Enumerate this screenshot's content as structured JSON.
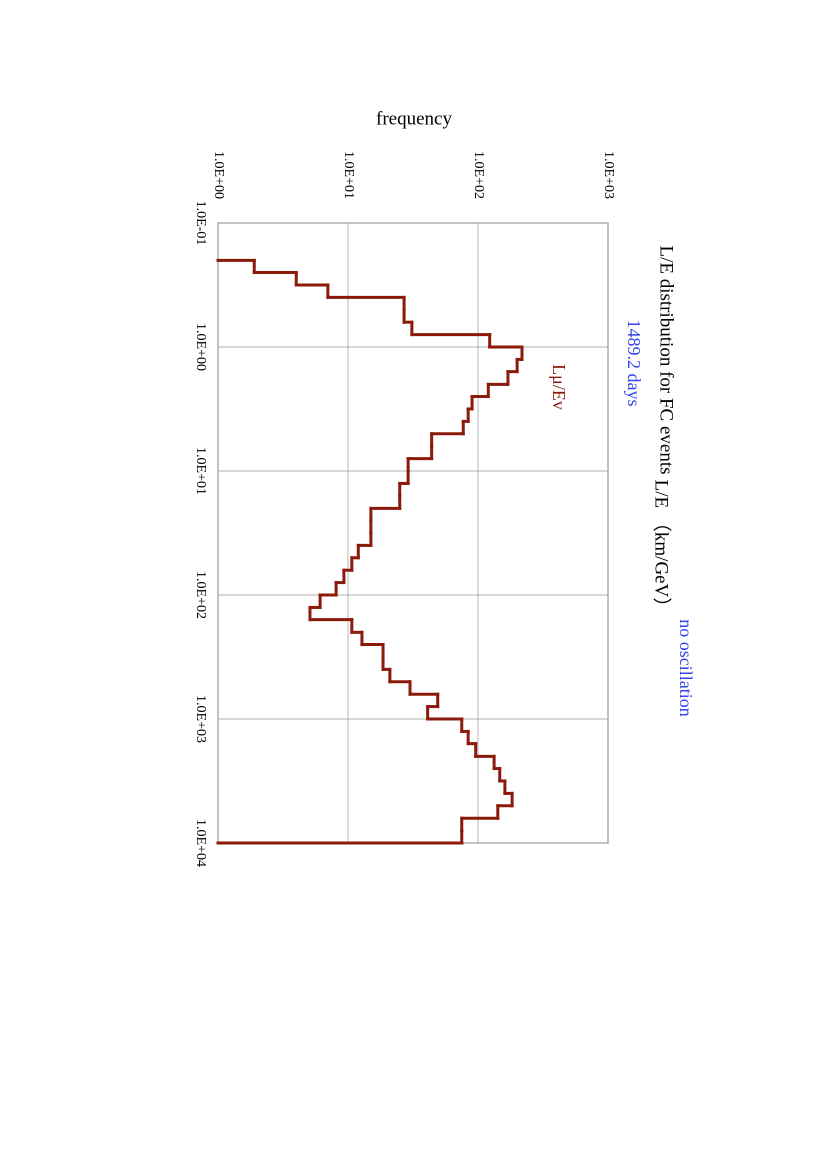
{
  "chart_data": {
    "type": "histogram",
    "title": "L/E distribution for FC events",
    "subtitle": "1489.2 days",
    "annotations": [
      "no oscillation"
    ],
    "xlabel": "L/E （km/GeV）",
    "ylabel": "frequency",
    "xlog": true,
    "ylog": true,
    "grid": true,
    "series": [
      {
        "name": "Lμ/Ev",
        "color": "#8b1a0a"
      }
    ],
    "bins": [
      0.2,
      0.251,
      0.316,
      0.398,
      0.501,
      0.631,
      0.794,
      1,
      1.26,
      1.58,
      2,
      2.51,
      3.16,
      3.98,
      5.01,
      6.31,
      7.94,
      10,
      12.6,
      15.8,
      20,
      25.1,
      31.6,
      39.8,
      50.1,
      63.1,
      79.4,
      100,
      126,
      158,
      200,
      251,
      316,
      398,
      501,
      631,
      794,
      1000,
      1260,
      1580,
      2000,
      2510,
      3160,
      3980,
      5010,
      6310,
      7940,
      10000
    ],
    "values": [
      1.9,
      4,
      7,
      27,
      27,
      31,
      123,
      218,
      200,
      170,
      120,
      90,
      84,
      77,
      44,
      44,
      29,
      29,
      25,
      25,
      15,
      15,
      15,
      12,
      10.7,
      9.3,
      8.1,
      6.1,
      5.1,
      10.7,
      12.8,
      18.6,
      18.6,
      21,
      30,
      49,
      41,
      75,
      84,
      96,
      133,
      147,
      161,
      183,
      142,
      75,
      75
    ],
    "xlim": [
      0.1,
      10000
    ],
    "xticks": [
      {
        "value": 0.1,
        "label": "1.0E-01"
      },
      {
        "value": 1,
        "label": "1.0E+00"
      },
      {
        "value": 10,
        "label": "1.0E+01"
      },
      {
        "value": 100,
        "label": "1.0E+02"
      },
      {
        "value": 1000,
        "label": "1.0E+03"
      },
      {
        "value": 10000,
        "label": "1.0E+04"
      }
    ],
    "ylim": [
      1,
      1000
    ],
    "yticks": [
      {
        "value": 1,
        "label": "1.0E+00"
      },
      {
        "value": 10,
        "label": "1.0E+01"
      },
      {
        "value": 100,
        "label": "1.0E+02"
      },
      {
        "value": 1000,
        "label": "1.0E+03"
      }
    ]
  }
}
